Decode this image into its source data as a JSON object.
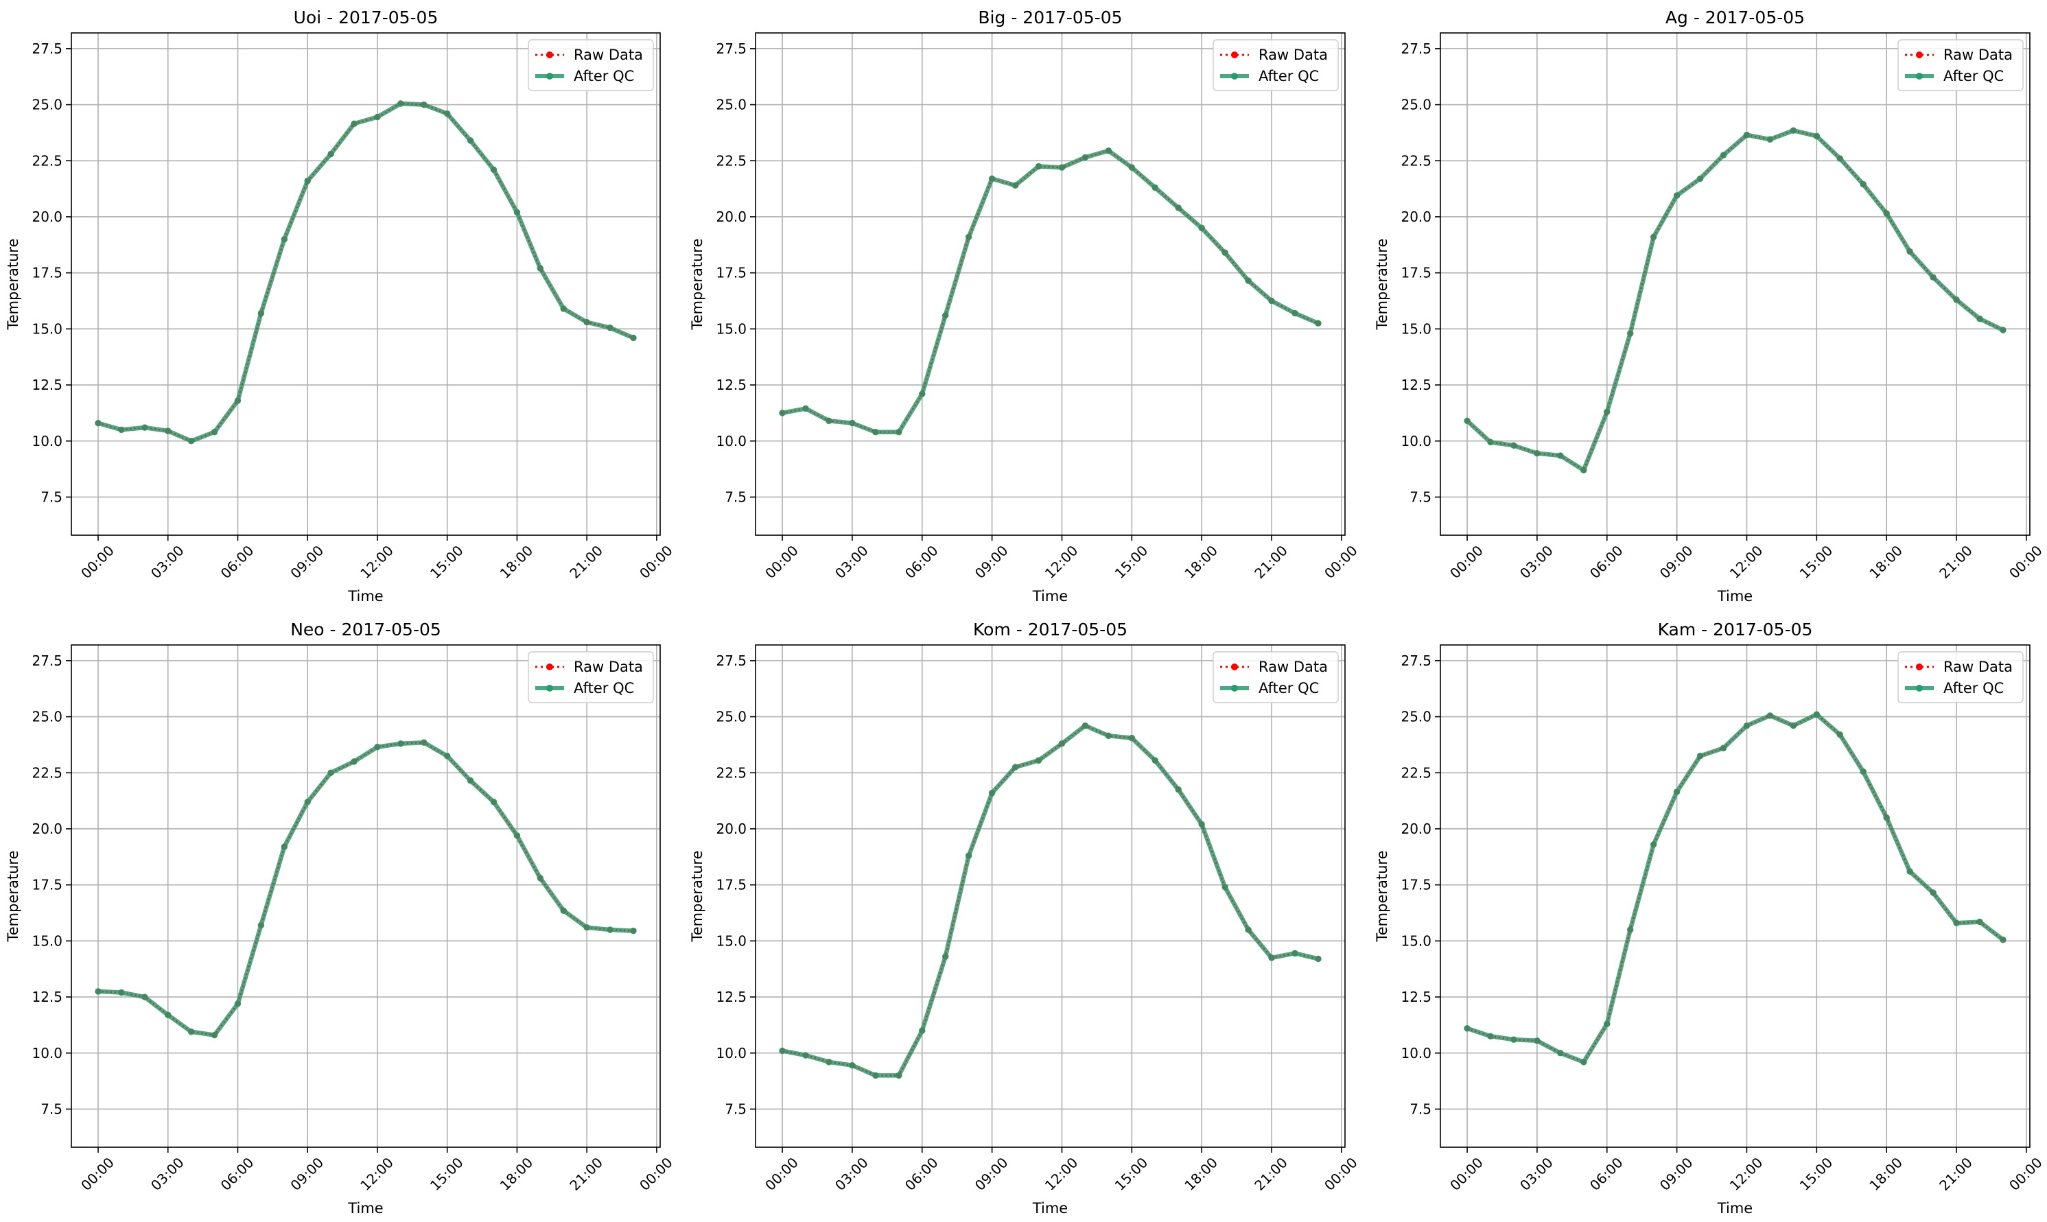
{
  "legend": {
    "raw_label": "Raw Data",
    "qc_label": "After QC",
    "placement": "upper-right"
  },
  "colors": {
    "raw": "#ff0000",
    "qc": "#2a9a6f",
    "grid": "#b0b0b0"
  },
  "axes_common": {
    "xlabel": "Time",
    "ylabel": "Temperature",
    "ylim": [
      5.8,
      28.2
    ],
    "yticks": [
      7.5,
      10.0,
      12.5,
      15.0,
      17.5,
      20.0,
      22.5,
      25.0,
      27.5
    ],
    "ytick_labels": [
      "7.5",
      "10.0",
      "12.5",
      "15.0",
      "17.5",
      "20.0",
      "22.5",
      "25.0",
      "27.5"
    ],
    "xlim_hours": [
      -1.15,
      24.15
    ],
    "xticks_hours": [
      0,
      3,
      6,
      9,
      12,
      15,
      18,
      21,
      24
    ],
    "xtick_labels": [
      "00:00",
      "03:00",
      "06:00",
      "09:00",
      "12:00",
      "15:00",
      "18:00",
      "21:00",
      "00:00"
    ],
    "grid": true
  },
  "chart_data": [
    {
      "type": "line",
      "title": "Uoi - 2017-05-05",
      "x": [
        "00:00",
        "01:00",
        "02:00",
        "03:00",
        "04:00",
        "05:00",
        "06:00",
        "07:00",
        "08:00",
        "09:00",
        "10:00",
        "11:00",
        "12:00",
        "13:00",
        "14:00",
        "15:00",
        "16:00",
        "17:00",
        "18:00",
        "19:00",
        "20:00",
        "21:00",
        "22:00",
        "23:00"
      ],
      "series": [
        {
          "name": "Raw Data",
          "values": [
            10.8,
            10.5,
            10.6,
            10.45,
            10.0,
            10.4,
            11.8,
            15.7,
            19.0,
            21.6,
            22.8,
            24.15,
            24.45,
            25.05,
            25.0,
            24.6,
            23.4,
            22.1,
            20.2,
            17.7,
            15.9,
            15.3,
            15.05,
            14.6
          ]
        },
        {
          "name": "After QC",
          "values": [
            10.8,
            10.5,
            10.6,
            10.45,
            10.0,
            10.4,
            11.8,
            15.7,
            19.0,
            21.6,
            22.8,
            24.15,
            24.45,
            25.05,
            25.0,
            24.6,
            23.4,
            22.1,
            20.2,
            17.7,
            15.9,
            15.3,
            15.05,
            14.6
          ]
        }
      ]
    },
    {
      "type": "line",
      "title": "Big - 2017-05-05",
      "x": [
        "00:00",
        "01:00",
        "02:00",
        "03:00",
        "04:00",
        "05:00",
        "06:00",
        "07:00",
        "08:00",
        "09:00",
        "10:00",
        "11:00",
        "12:00",
        "13:00",
        "14:00",
        "15:00",
        "16:00",
        "17:00",
        "18:00",
        "19:00",
        "20:00",
        "21:00",
        "22:00",
        "23:00"
      ],
      "series": [
        {
          "name": "Raw Data",
          "values": [
            11.25,
            11.45,
            10.9,
            10.8,
            10.4,
            10.4,
            12.1,
            15.6,
            19.1,
            21.7,
            21.4,
            22.25,
            22.2,
            22.65,
            22.95,
            22.2,
            21.3,
            20.4,
            19.5,
            18.4,
            17.15,
            16.25,
            15.7,
            15.25
          ]
        },
        {
          "name": "After QC",
          "values": [
            11.25,
            11.45,
            10.9,
            10.8,
            10.4,
            10.4,
            12.1,
            15.6,
            19.1,
            21.7,
            21.4,
            22.25,
            22.2,
            22.65,
            22.95,
            22.2,
            21.3,
            20.4,
            19.5,
            18.4,
            17.15,
            16.25,
            15.7,
            15.25
          ]
        }
      ]
    },
    {
      "type": "line",
      "title": "Ag - 2017-05-05",
      "x": [
        "00:00",
        "01:00",
        "02:00",
        "03:00",
        "04:00",
        "05:00",
        "06:00",
        "07:00",
        "08:00",
        "09:00",
        "10:00",
        "11:00",
        "12:00",
        "13:00",
        "14:00",
        "15:00",
        "16:00",
        "17:00",
        "18:00",
        "19:00",
        "20:00",
        "21:00",
        "22:00",
        "23:00"
      ],
      "series": [
        {
          "name": "Raw Data",
          "values": [
            10.9,
            9.95,
            9.8,
            9.45,
            9.35,
            8.7,
            11.3,
            14.8,
            19.1,
            20.95,
            21.7,
            22.75,
            23.65,
            23.45,
            23.85,
            23.6,
            22.6,
            21.45,
            20.15,
            18.45,
            17.3,
            16.3,
            15.45,
            14.95
          ]
        },
        {
          "name": "After QC",
          "values": [
            10.9,
            9.95,
            9.8,
            9.45,
            9.35,
            8.7,
            11.3,
            14.8,
            19.1,
            20.95,
            21.7,
            22.75,
            23.65,
            23.45,
            23.85,
            23.6,
            22.6,
            21.45,
            20.15,
            18.45,
            17.3,
            16.3,
            15.45,
            14.95
          ]
        }
      ]
    },
    {
      "type": "line",
      "title": "Neo - 2017-05-05",
      "x": [
        "00:00",
        "01:00",
        "02:00",
        "03:00",
        "04:00",
        "05:00",
        "06:00",
        "07:00",
        "08:00",
        "09:00",
        "10:00",
        "11:00",
        "12:00",
        "13:00",
        "14:00",
        "15:00",
        "16:00",
        "17:00",
        "18:00",
        "19:00",
        "20:00",
        "21:00",
        "22:00",
        "23:00"
      ],
      "series": [
        {
          "name": "Raw Data",
          "values": [
            12.75,
            12.7,
            12.5,
            11.7,
            10.95,
            10.8,
            12.2,
            15.7,
            19.2,
            21.2,
            22.5,
            23.0,
            23.65,
            23.8,
            23.85,
            23.25,
            22.15,
            21.2,
            19.7,
            17.8,
            16.35,
            15.6,
            15.5,
            15.45
          ]
        },
        {
          "name": "After QC",
          "values": [
            12.75,
            12.7,
            12.5,
            11.7,
            10.95,
            10.8,
            12.2,
            15.7,
            19.2,
            21.2,
            22.5,
            23.0,
            23.65,
            23.8,
            23.85,
            23.25,
            22.15,
            21.2,
            19.7,
            17.8,
            16.35,
            15.6,
            15.5,
            15.45
          ]
        }
      ]
    },
    {
      "type": "line",
      "title": "Kom - 2017-05-05",
      "x": [
        "00:00",
        "01:00",
        "02:00",
        "03:00",
        "04:00",
        "05:00",
        "06:00",
        "07:00",
        "08:00",
        "09:00",
        "10:00",
        "11:00",
        "12:00",
        "13:00",
        "14:00",
        "15:00",
        "16:00",
        "17:00",
        "18:00",
        "19:00",
        "20:00",
        "21:00",
        "22:00",
        "23:00"
      ],
      "series": [
        {
          "name": "Raw Data",
          "values": [
            10.1,
            9.9,
            9.6,
            9.45,
            9.0,
            9.0,
            11.0,
            14.3,
            18.8,
            21.6,
            22.75,
            23.05,
            23.8,
            24.6,
            24.15,
            24.05,
            23.05,
            21.75,
            20.2,
            17.4,
            15.5,
            14.25,
            14.45,
            14.2
          ]
        },
        {
          "name": "After QC",
          "values": [
            10.1,
            9.9,
            9.6,
            9.45,
            9.0,
            9.0,
            11.0,
            14.3,
            18.8,
            21.6,
            22.75,
            23.05,
            23.8,
            24.6,
            24.15,
            24.05,
            23.05,
            21.75,
            20.2,
            17.4,
            15.5,
            14.25,
            14.45,
            14.2
          ]
        }
      ]
    },
    {
      "type": "line",
      "title": "Kam - 2017-05-05",
      "x": [
        "00:00",
        "01:00",
        "02:00",
        "03:00",
        "04:00",
        "05:00",
        "06:00",
        "07:00",
        "08:00",
        "09:00",
        "10:00",
        "11:00",
        "12:00",
        "13:00",
        "14:00",
        "15:00",
        "16:00",
        "17:00",
        "18:00",
        "19:00",
        "20:00",
        "21:00",
        "22:00",
        "23:00"
      ],
      "series": [
        {
          "name": "Raw Data",
          "values": [
            11.1,
            10.75,
            10.6,
            10.55,
            10.0,
            9.6,
            11.3,
            15.5,
            19.3,
            21.65,
            23.25,
            23.6,
            24.6,
            25.05,
            24.6,
            25.1,
            24.2,
            22.55,
            20.5,
            18.1,
            17.15,
            15.8,
            15.85,
            15.05
          ]
        },
        {
          "name": "After QC",
          "values": [
            11.1,
            10.75,
            10.6,
            10.55,
            10.0,
            9.6,
            11.3,
            15.5,
            19.3,
            21.65,
            23.25,
            23.6,
            24.6,
            25.05,
            24.6,
            25.1,
            24.2,
            22.55,
            20.5,
            18.1,
            17.15,
            15.8,
            15.85,
            15.05
          ]
        }
      ]
    }
  ]
}
